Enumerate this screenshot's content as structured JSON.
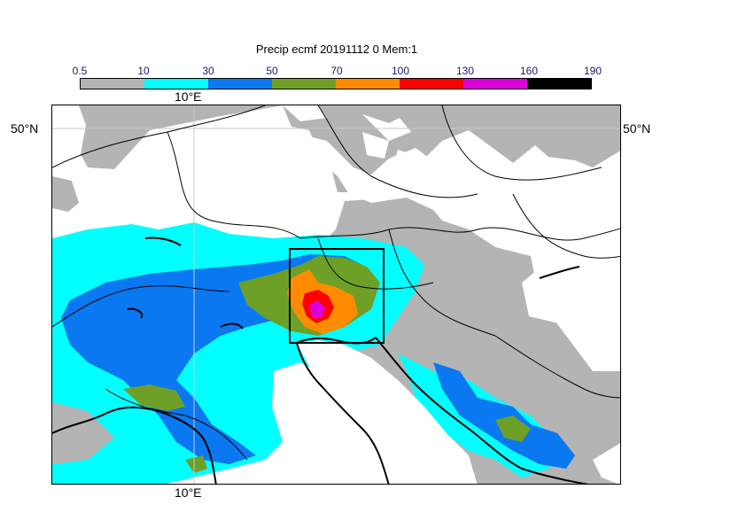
{
  "title": "Precip ecmf 20191112 0 Mem:1",
  "colorbar": {
    "levels": [
      "0.5",
      "10",
      "30",
      "50",
      "70",
      "100",
      "130",
      "160",
      "190"
    ],
    "colors": [
      "#b4b4b4",
      "#00ffff",
      "#0a78f0",
      "#6ea028",
      "#ff8c00",
      "#ff0000",
      "#dc00dc",
      "#000000"
    ]
  },
  "axes": {
    "lon_top": "10°E",
    "lon_bottom": "10°E",
    "lat_left": "50°N",
    "lat_right": "50°N"
  },
  "colors": {
    "map_background": "#ffffff",
    "gridline": "#c8c8c8",
    "coastline": "#000000",
    "border": "#000000"
  }
}
